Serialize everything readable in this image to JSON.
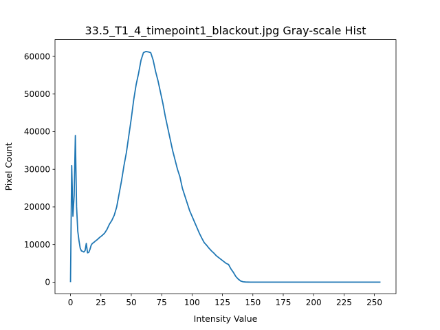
{
  "chart_data": {
    "type": "line",
    "title": "33.5_T1_4_timepoint1_blackout.jpg Gray-scale Hist",
    "xlabel": "Intensity Value",
    "ylabel": "Pixel Count",
    "xlim": [
      -12.75,
      267.75
    ],
    "ylim": [
      -3070,
      64470
    ],
    "x_ticks": [
      0,
      25,
      50,
      75,
      100,
      125,
      150,
      175,
      200,
      225,
      250
    ],
    "y_ticks": [
      0,
      10000,
      20000,
      30000,
      40000,
      50000,
      60000
    ],
    "x_tick_labels": [
      "0",
      "25",
      "50",
      "75",
      "100",
      "125",
      "150",
      "175",
      "200",
      "225",
      "250"
    ],
    "y_tick_labels": [
      "0",
      "10000",
      "20000",
      "30000",
      "40000",
      "50000",
      "60000"
    ],
    "grid": false,
    "line_color": "#1f77b4",
    "series": [
      {
        "x": [
          0,
          1,
          2,
          3,
          4,
          5,
          6,
          7,
          8,
          9,
          10,
          11,
          12,
          13,
          14,
          15,
          16,
          17,
          18,
          19,
          20,
          22,
          24,
          26,
          28,
          30,
          32,
          34,
          36,
          38,
          40,
          42,
          44,
          46,
          48,
          50,
          52,
          54,
          56,
          58,
          60,
          62,
          64,
          66,
          68,
          70,
          72,
          74,
          76,
          78,
          80,
          82,
          84,
          86,
          88,
          90,
          92,
          94,
          96,
          98,
          100,
          102,
          104,
          106,
          108,
          110,
          112,
          114,
          116,
          118,
          120,
          122,
          124,
          126,
          128,
          130,
          132,
          134,
          136,
          138,
          140,
          142,
          144,
          146,
          148,
          150,
          155,
          160,
          165,
          170,
          175,
          180,
          185,
          190,
          195,
          200,
          205,
          210,
          220,
          230,
          240,
          250,
          255
        ],
        "y": [
          0,
          31000,
          17500,
          23000,
          39000,
          20000,
          13500,
          11000,
          9000,
          8300,
          8200,
          8000,
          8400,
          10300,
          7800,
          7900,
          8700,
          9800,
          10300,
          10500,
          10800,
          11300,
          11900,
          12400,
          13000,
          14000,
          15400,
          16400,
          17800,
          20000,
          23500,
          27000,
          31000,
          34500,
          39000,
          43500,
          48500,
          52500,
          55500,
          59000,
          61000,
          61300,
          61200,
          61000,
          59000,
          56000,
          53500,
          50500,
          47500,
          44000,
          41000,
          38000,
          35000,
          32500,
          30000,
          28000,
          25000,
          23000,
          21000,
          19000,
          17500,
          16000,
          14500,
          13000,
          11700,
          10500,
          9800,
          9000,
          8300,
          7700,
          7000,
          6500,
          6000,
          5500,
          5000,
          4700,
          3500,
          2600,
          1500,
          800,
          300,
          100,
          40,
          20,
          10,
          5,
          0,
          0,
          0,
          0,
          0,
          0,
          0,
          0,
          0,
          0,
          0,
          0,
          0,
          0,
          0,
          0,
          0
        ]
      }
    ]
  }
}
